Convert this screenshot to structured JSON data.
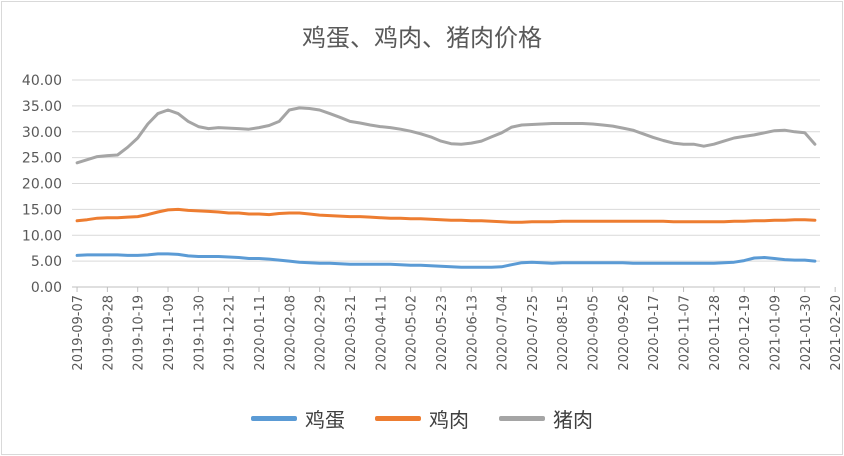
{
  "chart_data": {
    "type": "line",
    "title": "鸡蛋、鸡肉、猪肉价格",
    "ylim": [
      0,
      40
    ],
    "yticks": [
      "0.00",
      "5.00",
      "10.00",
      "15.00",
      "20.00",
      "25.00",
      "30.00",
      "35.00",
      "40.00"
    ],
    "xtick_labels": [
      "2019-09-07",
      "2019-09-28",
      "2019-10-19",
      "2019-11-09",
      "2019-11-30",
      "2019-12-21",
      "2020-01-11",
      "2020-02-08",
      "2020-02-29",
      "2020-03-21",
      "2020-04-11",
      "2020-05-02",
      "2020-05-23",
      "2020-06-13",
      "2020-07-04",
      "2020-07-25",
      "2020-08-15",
      "2020-09-05",
      "2020-09-26",
      "2020-10-17",
      "2020-11-07",
      "2020-11-28",
      "2020-12-19",
      "2021-01-09",
      "2021-01-30",
      "2021-02-20"
    ],
    "n_points": 74,
    "grid": true,
    "legend_position": "bottom",
    "series": [
      {
        "name": "鸡蛋",
        "color": "#5b9bd5",
        "values": [
          6.1,
          6.2,
          6.2,
          6.2,
          6.2,
          6.1,
          6.1,
          6.2,
          6.4,
          6.4,
          6.3,
          6.0,
          5.9,
          5.9,
          5.9,
          5.8,
          5.7,
          5.5,
          5.5,
          5.4,
          5.2,
          5.0,
          4.8,
          4.7,
          4.6,
          4.6,
          4.5,
          4.4,
          4.4,
          4.4,
          4.4,
          4.4,
          4.3,
          4.2,
          4.2,
          4.1,
          4.0,
          3.9,
          3.8,
          3.8,
          3.8,
          3.8,
          3.9,
          4.3,
          4.7,
          4.8,
          4.7,
          4.6,
          4.7,
          4.7,
          4.7,
          4.7,
          4.7,
          4.7,
          4.7,
          4.6,
          4.6,
          4.6,
          4.6,
          4.6,
          4.6,
          4.6,
          4.6,
          4.6,
          4.7,
          4.8,
          5.1,
          5.6,
          5.7,
          5.5,
          5.3,
          5.2,
          5.2,
          5.0
        ]
      },
      {
        "name": "鸡肉",
        "color": "#ed7d31",
        "values": [
          12.8,
          13.0,
          13.3,
          13.4,
          13.4,
          13.5,
          13.6,
          14.0,
          14.5,
          14.9,
          15.0,
          14.8,
          14.7,
          14.6,
          14.5,
          14.3,
          14.3,
          14.1,
          14.1,
          14.0,
          14.2,
          14.3,
          14.3,
          14.1,
          13.9,
          13.8,
          13.7,
          13.6,
          13.6,
          13.5,
          13.4,
          13.3,
          13.3,
          13.2,
          13.2,
          13.1,
          13.0,
          12.9,
          12.9,
          12.8,
          12.8,
          12.7,
          12.6,
          12.5,
          12.5,
          12.6,
          12.6,
          12.6,
          12.7,
          12.7,
          12.7,
          12.7,
          12.7,
          12.7,
          12.7,
          12.7,
          12.7,
          12.7,
          12.7,
          12.6,
          12.6,
          12.6,
          12.6,
          12.6,
          12.6,
          12.7,
          12.7,
          12.8,
          12.8,
          12.9,
          12.9,
          13.0,
          13.0,
          12.9
        ]
      },
      {
        "name": "猪肉",
        "color": "#a5a5a5",
        "values": [
          24.0,
          24.6,
          25.2,
          25.4,
          25.5,
          27.0,
          28.8,
          31.5,
          33.5,
          34.2,
          33.5,
          32.0,
          31.0,
          30.6,
          30.8,
          30.7,
          30.6,
          30.5,
          30.8,
          31.2,
          32.0,
          34.2,
          34.6,
          34.5,
          34.2,
          33.5,
          32.8,
          32.0,
          31.7,
          31.3,
          31.0,
          30.8,
          30.5,
          30.1,
          29.6,
          29.0,
          28.2,
          27.7,
          27.6,
          27.8,
          28.2,
          29.0,
          29.8,
          30.9,
          31.3,
          31.4,
          31.5,
          31.6,
          31.6,
          31.6,
          31.6,
          31.5,
          31.3,
          31.1,
          30.7,
          30.3,
          29.6,
          28.9,
          28.3,
          27.8,
          27.6,
          27.6,
          27.2,
          27.6,
          28.2,
          28.8,
          29.1,
          29.4,
          29.8,
          30.2,
          30.3,
          30.0,
          29.8,
          27.6
        ]
      }
    ]
  }
}
